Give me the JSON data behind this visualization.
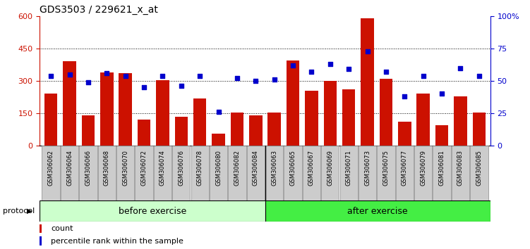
{
  "title": "GDS3503 / 229621_x_at",
  "categories": [
    "GSM306062",
    "GSM306064",
    "GSM306066",
    "GSM306068",
    "GSM306070",
    "GSM306072",
    "GSM306074",
    "GSM306076",
    "GSM306078",
    "GSM306080",
    "GSM306082",
    "GSM306084",
    "GSM306063",
    "GSM306065",
    "GSM306067",
    "GSM306069",
    "GSM306071",
    "GSM306073",
    "GSM306075",
    "GSM306077",
    "GSM306079",
    "GSM306081",
    "GSM306083",
    "GSM306085"
  ],
  "bar_values": [
    240,
    390,
    140,
    340,
    335,
    120,
    305,
    135,
    220,
    55,
    155,
    140,
    155,
    395,
    255,
    300,
    260,
    590,
    310,
    110,
    240,
    95,
    230,
    155
  ],
  "dot_values": [
    54,
    55,
    49,
    56,
    54,
    45,
    54,
    46,
    54,
    26,
    52,
    50,
    51,
    62,
    57,
    63,
    59,
    73,
    57,
    38,
    54,
    40,
    60,
    54
  ],
  "before_count": 12,
  "after_count": 12,
  "group_labels": [
    "before exercise",
    "after exercise"
  ],
  "ylim_left": [
    0,
    600
  ],
  "ylim_right": [
    0,
    100
  ],
  "yticks_left": [
    0,
    150,
    300,
    450,
    600
  ],
  "yticks_right": [
    0,
    25,
    50,
    75,
    100
  ],
  "bar_color": "#cc1100",
  "dot_color": "#0000cc",
  "before_bg": "#ccffcc",
  "after_bg": "#44ee44",
  "protocol_label": "protocol",
  "legend_count": "count",
  "legend_percentile": "percentile rank within the sample",
  "left_axis_color": "#cc1100",
  "right_axis_color": "#0000cc",
  "tick_label_bg": "#cccccc",
  "grid_yticks": [
    150,
    300,
    450
  ]
}
